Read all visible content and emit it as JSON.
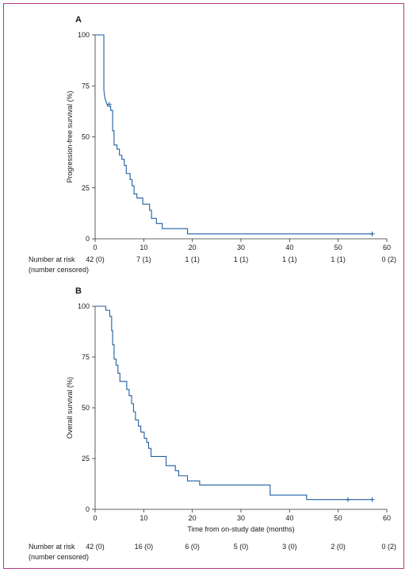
{
  "chart_data": [
    {
      "type": "line",
      "panel_label": "A",
      "xlabel": "",
      "ylabel": "Progression-free survival (%)",
      "xlim": [
        0,
        60
      ],
      "ylim": [
        0,
        100
      ],
      "xticks": [
        0,
        10,
        20,
        30,
        40,
        50,
        60
      ],
      "yticks": [
        0,
        25,
        50,
        75,
        100
      ],
      "series": [
        {
          "color": "#1f5fa0",
          "points": [
            [
              0,
              100
            ],
            [
              1.8,
              100
            ],
            [
              1.8,
              73
            ],
            [
              2,
              69
            ],
            [
              2.3,
              67
            ],
            [
              2.6,
              65
            ],
            [
              3.2,
              65
            ],
            [
              3.2,
              63
            ],
            [
              3.6,
              63
            ],
            [
              3.6,
              53
            ],
            [
              3.9,
              53
            ],
            [
              3.9,
              46
            ],
            [
              4.5,
              46
            ],
            [
              4.5,
              44
            ],
            [
              5,
              44
            ],
            [
              5,
              41
            ],
            [
              5.5,
              41
            ],
            [
              5.5,
              39
            ],
            [
              6,
              39
            ],
            [
              6,
              36
            ],
            [
              6.4,
              36
            ],
            [
              6.4,
              32
            ],
            [
              7.2,
              32
            ],
            [
              7.2,
              29
            ],
            [
              7.6,
              29
            ],
            [
              7.6,
              26
            ],
            [
              8,
              26
            ],
            [
              8,
              22
            ],
            [
              8.6,
              22
            ],
            [
              8.6,
              20
            ],
            [
              9.8,
              20
            ],
            [
              9.8,
              17
            ],
            [
              11.2,
              17
            ],
            [
              11.2,
              14
            ],
            [
              11.6,
              14
            ],
            [
              11.6,
              10
            ],
            [
              12.6,
              10
            ],
            [
              12.6,
              7.5
            ],
            [
              13.8,
              7.5
            ],
            [
              13.8,
              5
            ],
            [
              19,
              5
            ],
            [
              19,
              2.4
            ],
            [
              57,
              2.4
            ]
          ],
          "censored": [
            [
              2.9,
              66
            ],
            [
              57,
              2.4
            ]
          ]
        }
      ],
      "risk_table": {
        "label_line1": "Number at risk",
        "label_line2": "(number censored)",
        "x": [
          0,
          10,
          20,
          30,
          40,
          50,
          60
        ],
        "values": [
          "42 (0)",
          "7 (1)",
          "1 (1)",
          "1 (1)",
          "1 (1)",
          "1 (1)",
          "0 (2)"
        ]
      }
    },
    {
      "type": "line",
      "panel_label": "B",
      "xlabel": "Time from on-study date (months)",
      "ylabel": "Overall survival (%)",
      "xlim": [
        0,
        60
      ],
      "ylim": [
        0,
        100
      ],
      "xticks": [
        0,
        10,
        20,
        30,
        40,
        50,
        60
      ],
      "yticks": [
        0,
        25,
        50,
        75,
        100
      ],
      "series": [
        {
          "color": "#1f5fa0",
          "points": [
            [
              0,
              100
            ],
            [
              2.2,
              100
            ],
            [
              2.2,
              98
            ],
            [
              3,
              98
            ],
            [
              3,
              95
            ],
            [
              3.4,
              95
            ],
            [
              3.4,
              88
            ],
            [
              3.6,
              88
            ],
            [
              3.6,
              81
            ],
            [
              3.9,
              81
            ],
            [
              3.9,
              74
            ],
            [
              4.3,
              74
            ],
            [
              4.3,
              71
            ],
            [
              4.7,
              71
            ],
            [
              4.7,
              67
            ],
            [
              5.1,
              67
            ],
            [
              5.1,
              63
            ],
            [
              6.5,
              63
            ],
            [
              6.5,
              59
            ],
            [
              7,
              59
            ],
            [
              7,
              56
            ],
            [
              7.5,
              56
            ],
            [
              7.5,
              52
            ],
            [
              7.9,
              52
            ],
            [
              7.9,
              48
            ],
            [
              8.3,
              48
            ],
            [
              8.3,
              44
            ],
            [
              8.9,
              44
            ],
            [
              8.9,
              41
            ],
            [
              9.4,
              41
            ],
            [
              9.4,
              38
            ],
            [
              10.1,
              38
            ],
            [
              10.1,
              35
            ],
            [
              10.6,
              35
            ],
            [
              10.6,
              33
            ],
            [
              11,
              33
            ],
            [
              11,
              30
            ],
            [
              11.5,
              30
            ],
            [
              11.5,
              26
            ],
            [
              14.6,
              26
            ],
            [
              14.6,
              21.5
            ],
            [
              16.5,
              21.5
            ],
            [
              16.5,
              19
            ],
            [
              17.2,
              19
            ],
            [
              17.2,
              16.5
            ],
            [
              19,
              16.5
            ],
            [
              19,
              14
            ],
            [
              21.5,
              14
            ],
            [
              21.5,
              12
            ],
            [
              36,
              12
            ],
            [
              36,
              7
            ],
            [
              43.5,
              7
            ],
            [
              43.5,
              4.8
            ],
            [
              57,
              4.8
            ]
          ],
          "censored": [
            [
              52,
              4.8
            ],
            [
              57,
              4.8
            ]
          ]
        }
      ],
      "risk_table": {
        "label_line1": "Number at risk",
        "label_line2": "(number censored)",
        "x": [
          0,
          10,
          20,
          30,
          40,
          50,
          60
        ],
        "values": [
          "42 (0)",
          "16 (0)",
          "6 (0)",
          "5 (0)",
          "3 (0)",
          "2 (0)",
          "0 (2)"
        ]
      }
    }
  ]
}
